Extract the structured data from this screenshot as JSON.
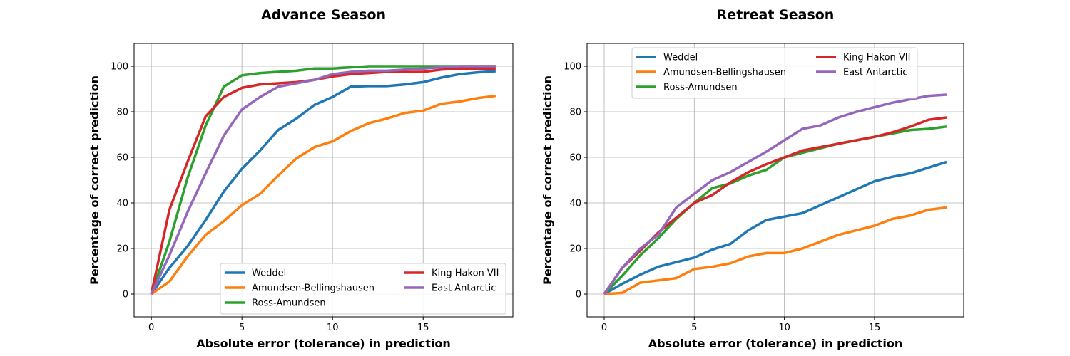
{
  "chart_data": [
    {
      "type": "line",
      "title": "Advance Season",
      "xlabel": "Absolute error (tolerance) in prediction",
      "ylabel": "Percentage of correct prediction",
      "xlim": [
        -0.95,
        19.95
      ],
      "ylim": [
        -10,
        110
      ],
      "xticks": [
        0,
        5,
        10,
        15
      ],
      "yticks": [
        0,
        20,
        40,
        60,
        80,
        100
      ],
      "grid": true,
      "legend": {
        "placement": "lower-right",
        "columns": 2
      },
      "x": [
        0,
        1,
        2,
        3,
        4,
        5,
        6,
        7,
        8,
        9,
        10,
        11,
        12,
        13,
        14,
        15,
        16,
        17,
        18,
        19
      ],
      "series": [
        {
          "name": "Weddel",
          "color": "#1f77b4",
          "values": [
            0,
            11.5,
            21,
            32.5,
            45,
            55,
            63,
            72,
            77,
            83,
            86.5,
            91,
            91.3,
            91.3,
            92,
            93,
            95,
            96.5,
            97.3,
            97.8
          ]
        },
        {
          "name": "Amundsen-Bellingshausen",
          "color": "#ff7f0e",
          "values": [
            0,
            5.5,
            16.5,
            26,
            32,
            39,
            44,
            52,
            59.5,
            64.5,
            67,
            71.5,
            75,
            77,
            79.5,
            80.5,
            83.5,
            84.5,
            86,
            87
          ]
        },
        {
          "name": "Ross-Amundsen",
          "color": "#2ca02c",
          "values": [
            0,
            23,
            51,
            74,
            91,
            96,
            97,
            97.5,
            98,
            99,
            99,
            99.5,
            100,
            100,
            100,
            100,
            100,
            100,
            100,
            100
          ]
        },
        {
          "name": "King Hakon VII",
          "color": "#d62728",
          "values": [
            0,
            37,
            58,
            78,
            86.5,
            90.5,
            92,
            92.5,
            93,
            94,
            95.5,
            96.5,
            97,
            97.5,
            97.5,
            97.5,
            98.5,
            99,
            99,
            99
          ]
        },
        {
          "name": "East Antarctic",
          "color": "#9467bd",
          "values": [
            0,
            17,
            36,
            53,
            69.5,
            81,
            86.5,
            91,
            92.5,
            94,
            96.5,
            97.5,
            98,
            98,
            98.5,
            99,
            99.5,
            100,
            100,
            100
          ]
        }
      ]
    },
    {
      "type": "line",
      "title": "Retreat Season",
      "xlabel": "Absolute error (tolerance) in prediction",
      "ylabel": "Percentage of correct prediction",
      "xlim": [
        -0.95,
        19.95
      ],
      "ylim": [
        -10,
        110
      ],
      "xticks": [
        0,
        5,
        10,
        15
      ],
      "yticks": [
        0,
        20,
        40,
        60,
        80,
        100
      ],
      "grid": true,
      "legend": {
        "placement": "upper-center",
        "columns": 2
      },
      "x": [
        0,
        1,
        2,
        3,
        4,
        5,
        6,
        7,
        8,
        9,
        10,
        11,
        12,
        13,
        14,
        15,
        16,
        17,
        18,
        19
      ],
      "series": [
        {
          "name": "Weddel",
          "color": "#1f77b4",
          "values": [
            0,
            4.5,
            8.5,
            12,
            14,
            16,
            19.5,
            22,
            28,
            32.5,
            34,
            35.5,
            39,
            42.5,
            46,
            49.5,
            51.5,
            53,
            55.5,
            58
          ]
        },
        {
          "name": "Amundsen-Bellingshausen",
          "color": "#ff7f0e",
          "values": [
            0,
            0.5,
            5,
            6,
            7,
            11,
            12,
            13.5,
            16.5,
            18,
            18,
            20,
            23,
            26,
            28,
            30,
            33,
            34.5,
            37,
            38
          ]
        },
        {
          "name": "Ross-Amundsen",
          "color": "#2ca02c",
          "values": [
            0,
            8,
            17,
            24.5,
            33,
            40,
            46.5,
            48.5,
            52,
            54.5,
            60,
            62,
            64,
            66,
            67.5,
            69,
            70.5,
            72,
            72.5,
            73.5
          ]
        },
        {
          "name": "King Hakon VII",
          "color": "#d62728",
          "values": [
            0,
            11.5,
            19,
            27,
            33.5,
            40,
            43.5,
            49,
            53.5,
            57,
            60,
            63,
            64.5,
            66,
            67.5,
            69,
            71,
            73.5,
            76.5,
            77.5
          ]
        },
        {
          "name": "East Antarctic",
          "color": "#9467bd",
          "values": [
            0,
            11.5,
            20,
            26,
            38,
            44,
            50,
            53.5,
            58,
            62.5,
            67.5,
            72.5,
            74,
            77.5,
            80,
            82,
            84,
            85.5,
            87,
            87.5
          ]
        }
      ]
    }
  ]
}
